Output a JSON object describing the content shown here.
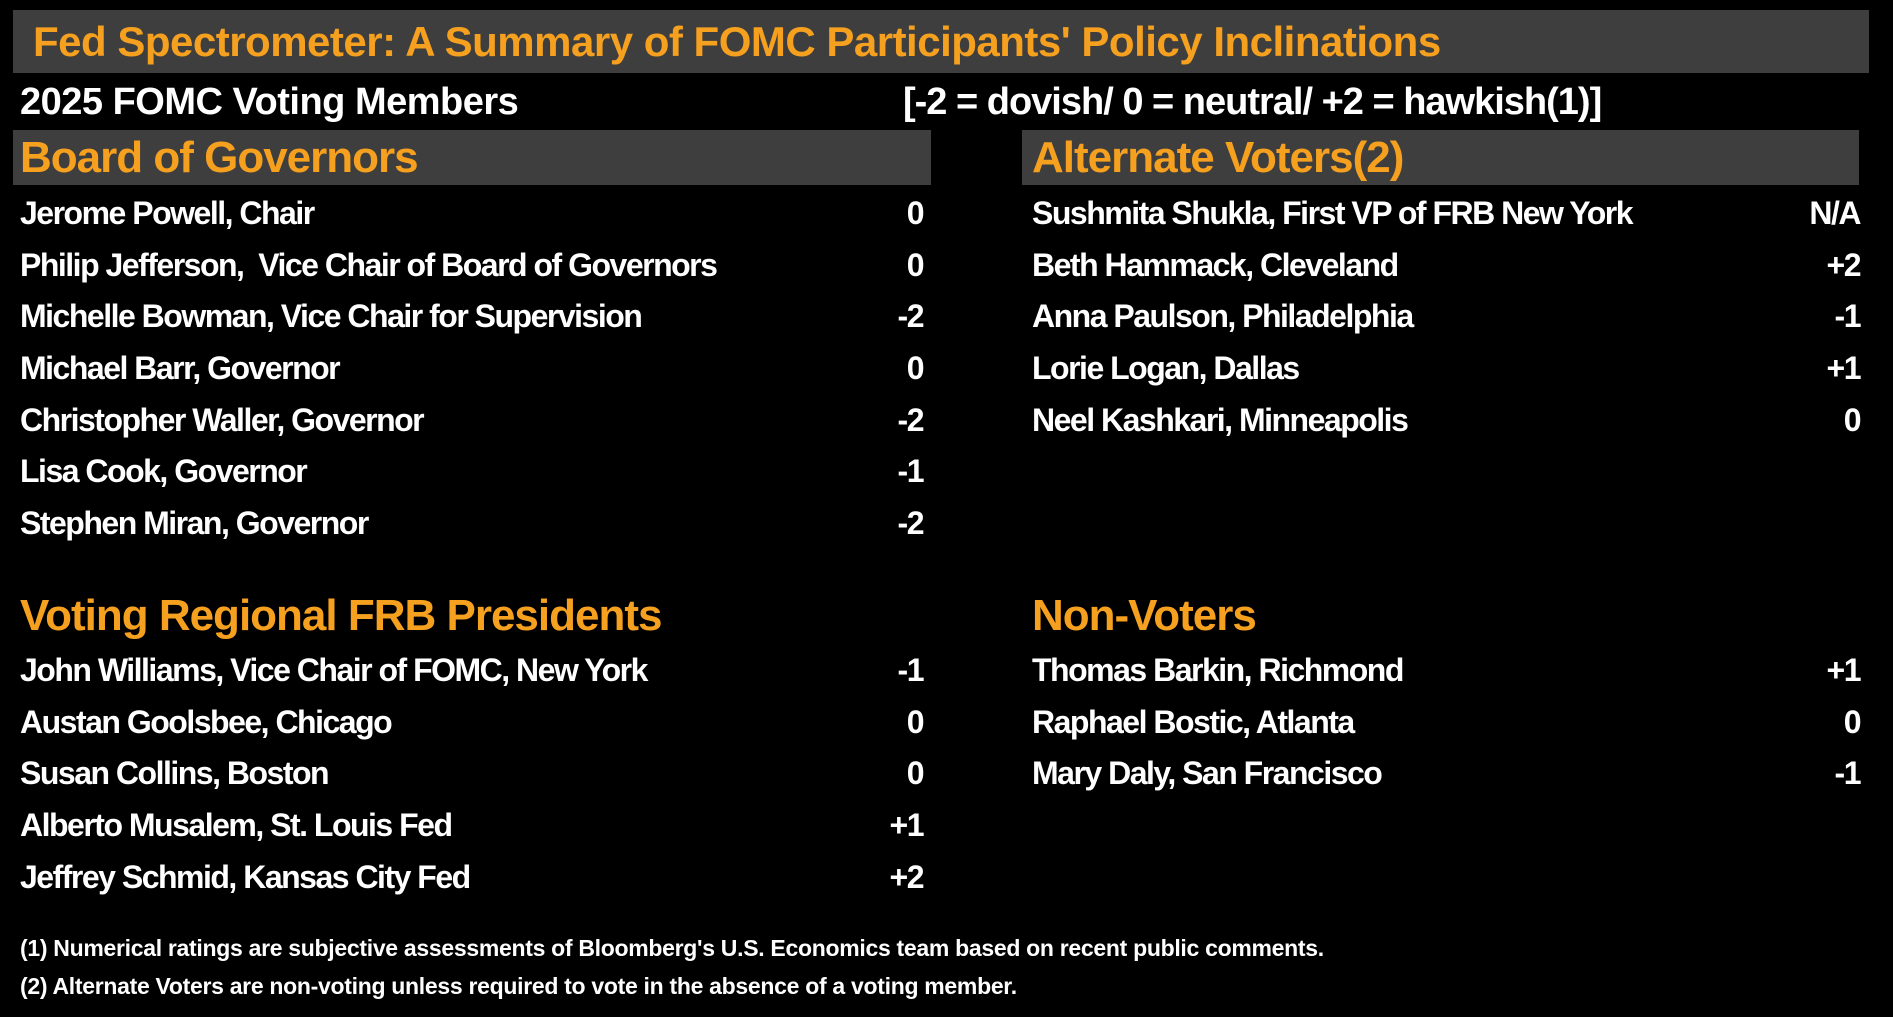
{
  "title": "Fed Spectrometer: A Summary of FOMC Participants' Policy Inclinations",
  "subtitle": {
    "left": "2025 FOMC Voting Members",
    "right": "[-2 = dovish/ 0 = neutral/ +2 = hawkish(1)]"
  },
  "colors": {
    "background": "#000000",
    "header_bar_gray": "#3e3e3e",
    "accent_orange": "#f5a01f",
    "text_white": "#ffffff"
  },
  "sections": {
    "board_of_governors": {
      "label": "Board of Governors",
      "rows": [
        {
          "name": "Jerome Powell, Chair",
          "rating": "0"
        },
        {
          "name": "Philip Jefferson,  Vice Chair of Board of Governors",
          "rating": "0"
        },
        {
          "name": "Michelle Bowman, Vice Chair for Supervision",
          "rating": "-2"
        },
        {
          "name": "Michael Barr, Governor",
          "rating": "0"
        },
        {
          "name": "Christopher Waller, Governor",
          "rating": "-2"
        },
        {
          "name": "Lisa Cook, Governor",
          "rating": "-1"
        },
        {
          "name": "Stephen Miran, Governor",
          "rating": "-2"
        }
      ]
    },
    "alternate_voters": {
      "label": "Alternate Voters(2)",
      "rows": [
        {
          "name": "Sushmita Shukla, First VP of FRB New York",
          "rating": "N/A"
        },
        {
          "name": "Beth Hammack, Cleveland",
          "rating": "+2"
        },
        {
          "name": "Anna Paulson, Philadelphia",
          "rating": "-1"
        },
        {
          "name": "Lorie Logan, Dallas",
          "rating": "+1"
        },
        {
          "name": "Neel Kashkari, Minneapolis",
          "rating": "0"
        }
      ]
    },
    "voting_regional": {
      "label": "Voting Regional FRB Presidents",
      "rows": [
        {
          "name": "John Williams, Vice Chair of FOMC, New York",
          "rating": "-1"
        },
        {
          "name": "Austan Goolsbee, Chicago",
          "rating": "0"
        },
        {
          "name": "Susan Collins, Boston",
          "rating": "0"
        },
        {
          "name": "Alberto Musalem, St. Louis Fed",
          "rating": "+1"
        },
        {
          "name": "Jeffrey Schmid, Kansas City Fed",
          "rating": "+2"
        }
      ]
    },
    "non_voters": {
      "label": "Non-Voters",
      "rows": [
        {
          "name": "Thomas Barkin, Richmond",
          "rating": "+1"
        },
        {
          "name": "Raphael Bostic, Atlanta",
          "rating": "0"
        },
        {
          "name": "Mary Daly, San Francisco",
          "rating": "-1"
        }
      ]
    }
  },
  "footnotes": [
    "(1) Numerical ratings are subjective assessments of Bloomberg's U.S. Economics team based on recent public comments.",
    "(2) Alternate Voters are non-voting unless required to vote in the absence of a voting member."
  ],
  "chart_data": {
    "type": "table",
    "title": "Fed Spectrometer: A Summary of FOMC Participants' Policy Inclinations",
    "subtitle": "2025 FOMC Voting Members",
    "scale_note": "[-2 = dovish/ 0 = neutral/ +2 = hawkish(1)]",
    "rating_scale": {
      "min": -2,
      "neutral": 0,
      "max": 2,
      "min_label": "dovish",
      "neutral_label": "neutral",
      "max_label": "hawkish"
    },
    "groups": [
      {
        "group": "Board of Governors",
        "members": [
          {
            "name": "Jerome Powell, Chair",
            "rating": 0
          },
          {
            "name": "Philip Jefferson, Vice Chair of Board of Governors",
            "rating": 0
          },
          {
            "name": "Michelle Bowman, Vice Chair for Supervision",
            "rating": -2
          },
          {
            "name": "Michael Barr, Governor",
            "rating": 0
          },
          {
            "name": "Christopher Waller, Governor",
            "rating": -2
          },
          {
            "name": "Lisa Cook, Governor",
            "rating": -1
          },
          {
            "name": "Stephen Miran, Governor",
            "rating": -2
          }
        ]
      },
      {
        "group": "Alternate Voters(2)",
        "members": [
          {
            "name": "Sushmita Shukla, First VP of FRB New York",
            "rating": null
          },
          {
            "name": "Beth Hammack, Cleveland",
            "rating": 2
          },
          {
            "name": "Anna Paulson, Philadelphia",
            "rating": -1
          },
          {
            "name": "Lorie Logan, Dallas",
            "rating": 1
          },
          {
            "name": "Neel Kashkari, Minneapolis",
            "rating": 0
          }
        ]
      },
      {
        "group": "Voting Regional FRB Presidents",
        "members": [
          {
            "name": "John Williams, Vice Chair of FOMC, New York",
            "rating": -1
          },
          {
            "name": "Austan Goolsbee, Chicago",
            "rating": 0
          },
          {
            "name": "Susan Collins, Boston",
            "rating": 0
          },
          {
            "name": "Alberto Musalem, St. Louis Fed",
            "rating": 1
          },
          {
            "name": "Jeffrey Schmid, Kansas City Fed",
            "rating": 2
          }
        ]
      },
      {
        "group": "Non-Voters",
        "members": [
          {
            "name": "Thomas Barkin, Richmond",
            "rating": 1
          },
          {
            "name": "Raphael Bostic, Atlanta",
            "rating": 0
          },
          {
            "name": "Mary Daly, San Francisco",
            "rating": -1
          }
        ]
      }
    ]
  }
}
